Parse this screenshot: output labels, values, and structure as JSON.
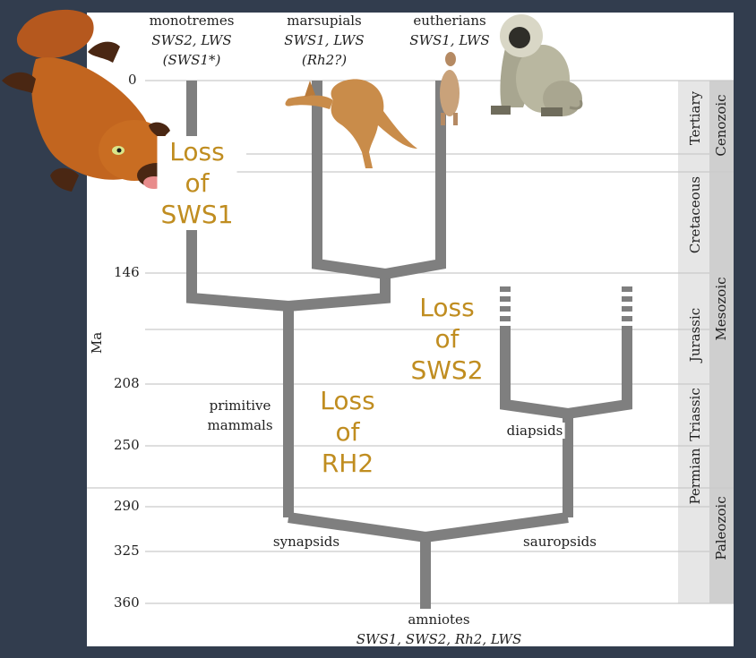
{
  "tips": {
    "monotremes": {
      "name": "monotremes",
      "genes": "SWS2, LWS",
      "note": "(SWS1*)"
    },
    "marsupials": {
      "name": "marsupials",
      "genes": "SWS1, LWS",
      "note": "(Rh2?)"
    },
    "eutherians": {
      "name": "eutherians",
      "genes": "SWS1, LWS"
    }
  },
  "axis": {
    "unit": "Ma",
    "ticks": [
      "0",
      "146",
      "208",
      "250",
      "290",
      "325",
      "360"
    ]
  },
  "labels": {
    "primitive_mammals": "primitive mammals",
    "synapsids": "synapsids",
    "sauropsids": "sauropsids",
    "diapsids": "diapsids",
    "amniotes": "amniotes",
    "amniote_genes": "SWS1, SWS2, Rh2, LWS"
  },
  "losses": {
    "sws1": {
      "line1": "Loss",
      "line2": "of",
      "line3": "SWS1"
    },
    "sws2": {
      "line1": "Loss",
      "line2": "of",
      "line3": "SWS2"
    },
    "rh2": {
      "line1": "Loss",
      "line2": "of",
      "line3": "RH2"
    }
  },
  "periods": [
    "Tertiary",
    "Cretaceous",
    "Jurassic",
    "Triassic",
    "Permian"
  ],
  "eras": [
    "Cenozoic",
    "Mesozoic",
    "Paleozoic"
  ],
  "colors": {
    "background": "#323d4e",
    "panel": "#ffffff",
    "branch": "#7f7f7f",
    "annotation": "#c08d20",
    "timescale_light": "#e6e6e6",
    "timescale_dark": "#cfcfcf"
  }
}
